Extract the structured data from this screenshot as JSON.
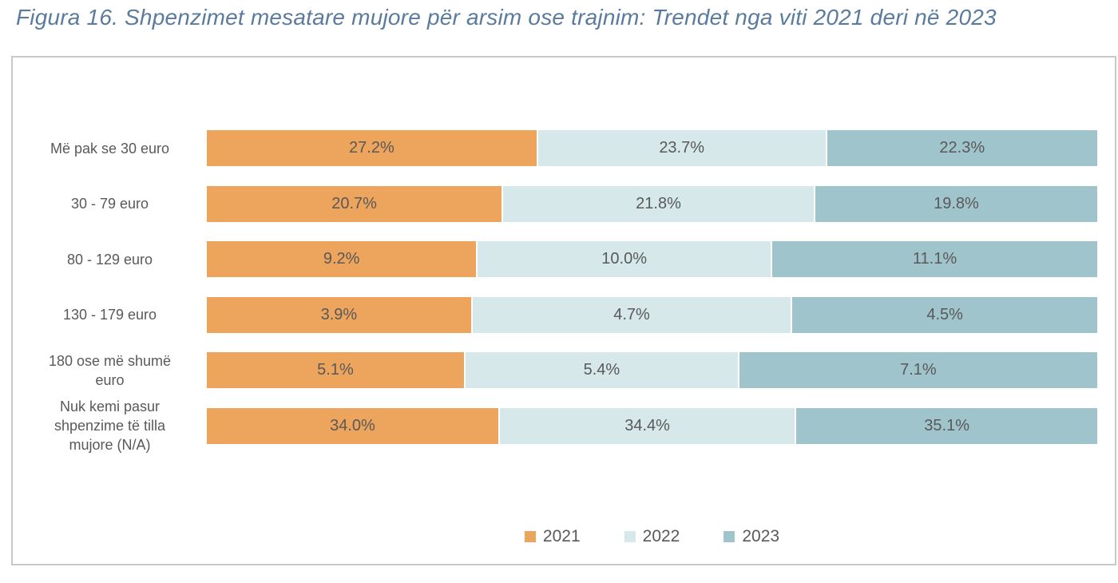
{
  "title": "Figura 16. Shpenzimet mesatare mujore për arsim ose trajnim: Trendet nga viti 2021 deri në 2023",
  "colors": {
    "series_2021": "#EDA45C",
    "series_2022": "#D6E8E9",
    "series_2023": "#A0C4CC",
    "title_text": "#5B7B9E",
    "label_text": "#595959",
    "frame_border": "#C9C9C9",
    "background": "#FFFFFF"
  },
  "chart_data": {
    "type": "bar",
    "subtype": "horizontal-100pct-stacked",
    "title": "Figura 16. Shpenzimet mesatare mujore për arsim ose trajnim: Trendet nga viti 2021 deri në 2023",
    "categories": [
      "Më pak se 30 euro",
      "30 - 79 euro",
      "80 - 129 euro",
      "130 - 179 euro",
      "180 ose më shumë euro",
      "Nuk kemi pasur shpenzime të tilla mujore (N/A)"
    ],
    "series": [
      {
        "name": "2021",
        "color": "#EDA45C",
        "values": [
          27.2,
          20.7,
          9.2,
          3.9,
          5.1,
          34.0
        ]
      },
      {
        "name": "2022",
        "color": "#D6E8E9",
        "values": [
          23.7,
          21.8,
          10.0,
          4.7,
          5.4,
          34.4
        ]
      },
      {
        "name": "2023",
        "color": "#A0C4CC",
        "values": [
          22.3,
          19.8,
          11.1,
          4.5,
          7.1,
          35.1
        ]
      }
    ],
    "value_format": "percent_one_decimal",
    "value_labels_inside_segments": true,
    "xlabel": "",
    "ylabel": "",
    "grid": false,
    "axis_ticks_visible": false,
    "legend_position": "bottom-center",
    "legend": [
      "2021",
      "2022",
      "2023"
    ]
  }
}
